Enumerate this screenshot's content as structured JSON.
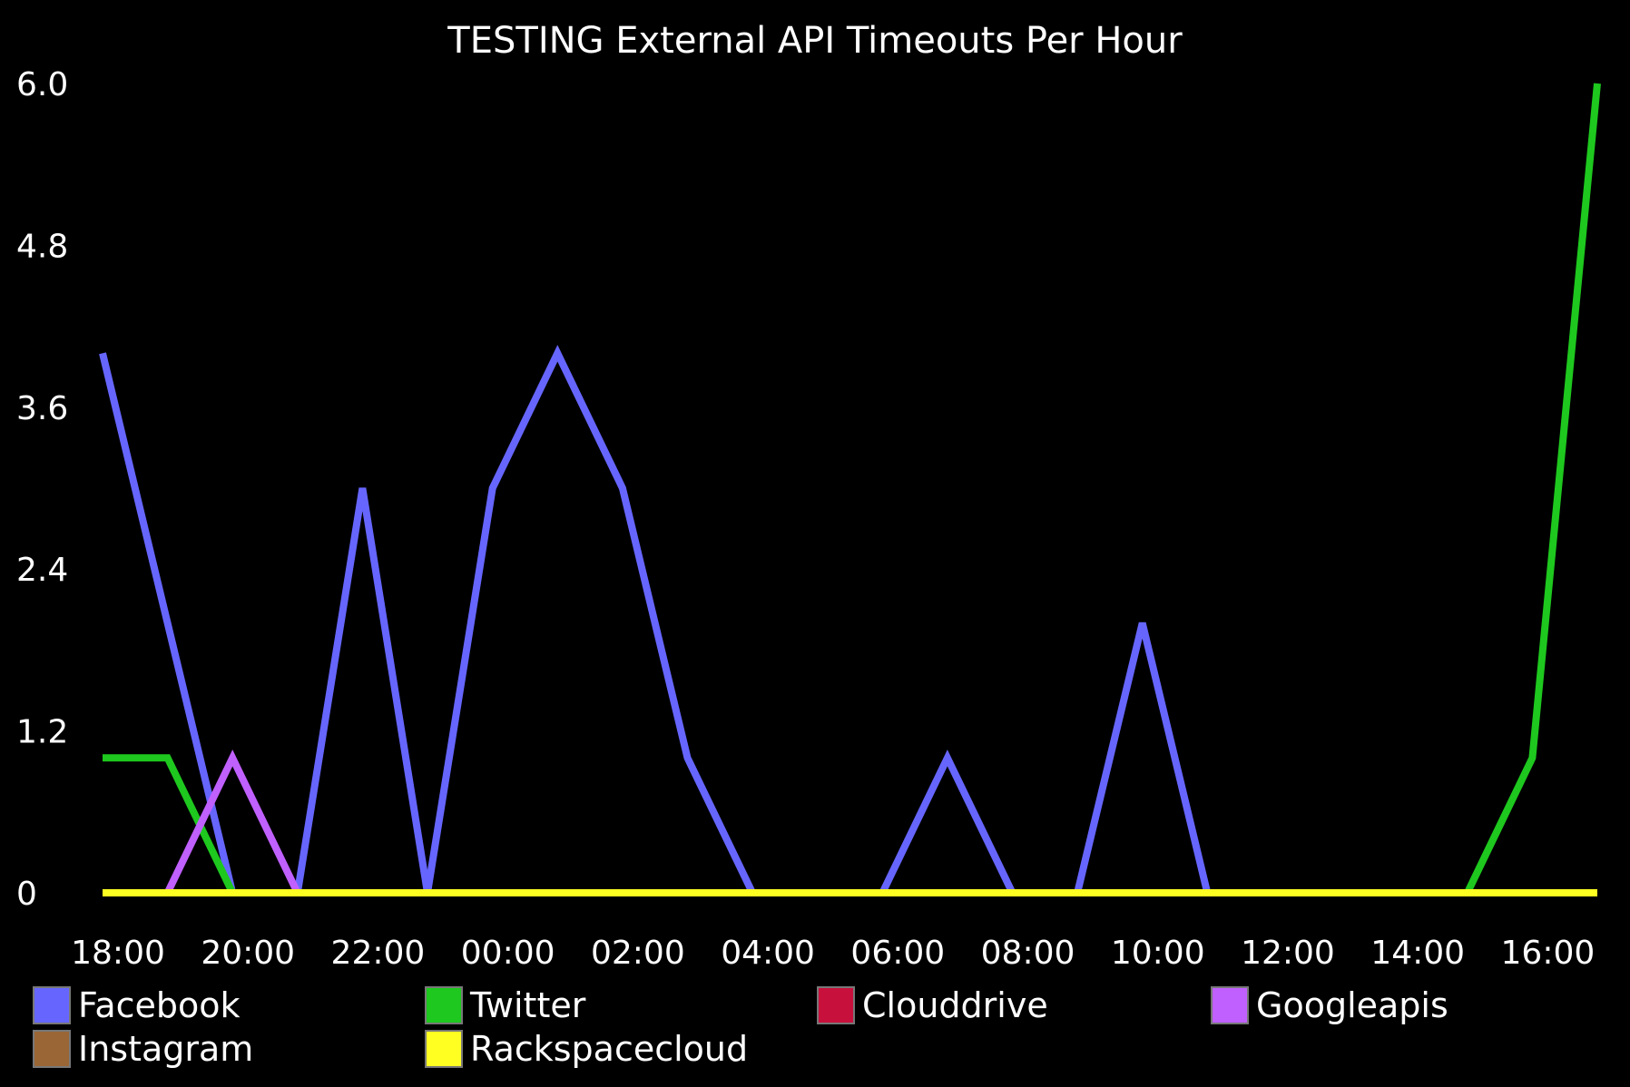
{
  "chart_data": {
    "type": "line",
    "title": "TESTING External API Timeouts Per Hour",
    "xlabel": "",
    "ylabel": "",
    "ylim": [
      0,
      6.0
    ],
    "yticks": [
      "0",
      "1.2",
      "2.4",
      "3.6",
      "4.8",
      "6.0"
    ],
    "x": [
      "18:00",
      "19:00",
      "20:00",
      "21:00",
      "22:00",
      "23:00",
      "00:00",
      "01:00",
      "02:00",
      "03:00",
      "04:00",
      "05:00",
      "06:00",
      "07:00",
      "08:00",
      "09:00",
      "10:00",
      "11:00",
      "12:00",
      "13:00",
      "14:00",
      "15:00",
      "16:00",
      "17:00"
    ],
    "xtick_labels": [
      "18:00",
      "20:00",
      "22:00",
      "00:00",
      "02:00",
      "04:00",
      "06:00",
      "08:00",
      "10:00",
      "12:00",
      "14:00",
      "16:00"
    ],
    "grid": false,
    "legend_position": "bottom",
    "series": [
      {
        "name": "Facebook",
        "color": "#6666ff",
        "values": [
          4,
          2,
          0,
          0,
          3,
          0,
          3,
          4,
          3,
          1,
          0,
          0,
          0,
          1,
          0,
          0,
          2,
          0,
          0,
          0,
          0,
          0,
          0,
          0
        ]
      },
      {
        "name": "Twitter",
        "color": "#1ec81e",
        "values": [
          1,
          1,
          0,
          0,
          0,
          0,
          0,
          0,
          0,
          0,
          0,
          0,
          0,
          0,
          0,
          0,
          0,
          0,
          0,
          0,
          0,
          0,
          1,
          6
        ]
      },
      {
        "name": "Clouddrive",
        "color": "#c8103c",
        "values": [
          0,
          0,
          0,
          0,
          0,
          0,
          0,
          0,
          0,
          0,
          0,
          0,
          0,
          0,
          0,
          0,
          0,
          0,
          0,
          0,
          0,
          0,
          0,
          0
        ]
      },
      {
        "name": "Googleapis",
        "color": "#c060ff",
        "values": [
          0,
          0,
          1,
          0,
          0,
          0,
          0,
          0,
          0,
          0,
          0,
          0,
          0,
          0,
          0,
          0,
          0,
          0,
          0,
          0,
          0,
          0,
          0,
          0
        ]
      },
      {
        "name": "Instagram",
        "color": "#9a6636",
        "values": [
          0,
          0,
          0,
          0,
          0,
          0,
          0,
          0,
          0,
          0,
          0,
          0,
          0,
          0,
          0,
          0,
          0,
          0,
          0,
          0,
          0,
          0,
          0,
          0
        ]
      },
      {
        "name": "Rackspacecloud",
        "color": "#ffff22",
        "values": [
          0,
          0,
          0,
          0,
          0,
          0,
          0,
          0,
          0,
          0,
          0,
          0,
          0,
          0,
          0,
          0,
          0,
          0,
          0,
          0,
          0,
          0,
          0,
          0
        ]
      }
    ]
  }
}
